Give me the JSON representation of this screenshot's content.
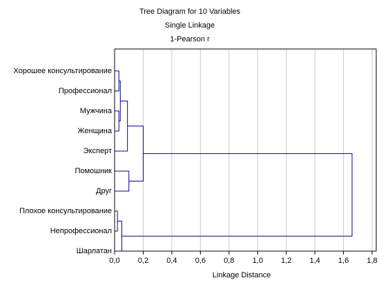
{
  "chart_data": {
    "type": "dendrogram",
    "title": "Tree Diagram for 10  Variables",
    "subtitle": [
      "Single Linkage",
      "1-Pearson r"
    ],
    "xlabel": "Linkage Distance",
    "leaves": [
      "Хорошее консультирование",
      "Профессионал",
      "Мужчина",
      "Женщина",
      "Эксперт",
      "Помошник",
      "Друг",
      "Плохое консультирование",
      "Непрофессионал",
      "Шарлатан"
    ],
    "merges": [
      {
        "left": 0,
        "right": 1,
        "height": 0.03
      },
      {
        "left": 2,
        "right": 3,
        "height": 0.03
      },
      {
        "left": 10,
        "right": 11,
        "height": 0.04
      },
      {
        "left": 12,
        "right": 4,
        "height": 0.09
      },
      {
        "left": 5,
        "right": 6,
        "height": 0.1
      },
      {
        "left": 13,
        "right": 14,
        "height": 0.2
      },
      {
        "left": 7,
        "right": 8,
        "height": 0.02
      },
      {
        "left": 16,
        "right": 9,
        "height": 0.05
      },
      {
        "left": 15,
        "right": 17,
        "height": 1.66
      }
    ],
    "color": "#00008b",
    "xlim": [
      0,
      1.8
    ],
    "xticks": [
      {
        "value": 0,
        "label": "0,0"
      },
      {
        "value": 0.2,
        "label": "0,2"
      },
      {
        "value": 0.4,
        "label": "0,4"
      },
      {
        "value": 0.6,
        "label": "0,6"
      },
      {
        "value": 0.8,
        "label": "0,8"
      },
      {
        "value": 1.0,
        "label": "1,0"
      },
      {
        "value": 1.2,
        "label": "1,2"
      },
      {
        "value": 1.4,
        "label": "1,4"
      },
      {
        "value": 1.6,
        "label": "1,6"
      },
      {
        "value": 1.8,
        "label": "1,8"
      }
    ],
    "grid": true
  }
}
